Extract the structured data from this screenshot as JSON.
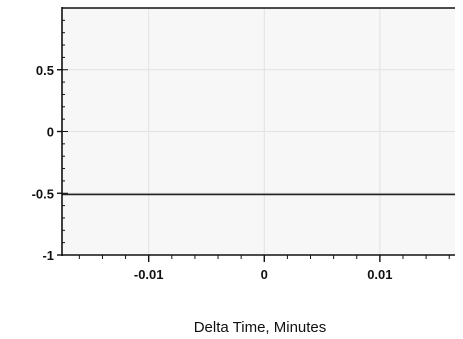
{
  "chart_data": {
    "type": "line",
    "title": "",
    "xlabel": "Delta Time, Minutes",
    "ylabel": "",
    "xlim": [
      -0.0175,
      0.0165
    ],
    "ylim": [
      -1,
      1
    ],
    "x_ticks": [
      {
        "value": -0.01,
        "label": "-0.01"
      },
      {
        "value": 0,
        "label": "0"
      },
      {
        "value": 0.01,
        "label": "0.01"
      }
    ],
    "y_ticks": [
      {
        "value": 0.5,
        "label": "0.5"
      },
      {
        "value": 0,
        "label": "0"
      },
      {
        "value": -0.5,
        "label": "-0.5"
      },
      {
        "value": -1,
        "label": "-1"
      }
    ],
    "series": [
      {
        "x": [
          -0.0175,
          0.0165
        ],
        "y": [
          -0.51,
          -0.51
        ],
        "color": "#222222"
      }
    ],
    "grid": true,
    "legend": "none",
    "colors": {
      "plot_background": "#f7f7f7",
      "axis": "#111111",
      "grid": "#e2e2e2"
    }
  }
}
